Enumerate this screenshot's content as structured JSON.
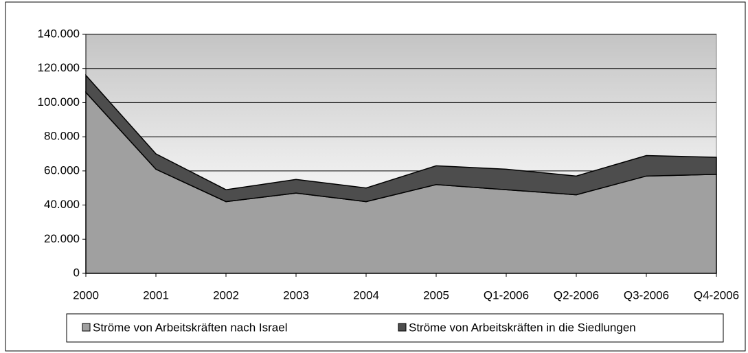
{
  "chart_data": {
    "type": "stacked_area",
    "categories": [
      "2000",
      "2001",
      "2002",
      "2003",
      "2004",
      "2005",
      "Q1-2006",
      "Q2-2006",
      "Q3-2006",
      "Q4-2006"
    ],
    "series": [
      {
        "name": "Ströme von Arbeitskräften nach Israel",
        "color": "#a0a0a0",
        "values": [
          106000,
          61000,
          42000,
          47000,
          42000,
          52000,
          49000,
          46000,
          57000,
          58000
        ]
      },
      {
        "name": "Ströme von Arbeitskräften in die Siedlungen",
        "color": "#4d4d4d",
        "values": [
          10000,
          9000,
          7000,
          8000,
          8000,
          11000,
          12000,
          11000,
          12000,
          10000
        ]
      }
    ],
    "ylim": [
      0,
      140000
    ],
    "yticks": [
      0,
      {
        "value": 20000,
        "label": "20.000"
      },
      {
        "value": 40000,
        "label": "40.000"
      },
      {
        "value": 60000,
        "label": "60.000"
      },
      {
        "value": 80000,
        "label": "80.000"
      },
      {
        "value": 100000,
        "label": "100.000"
      },
      {
        "value": 120000,
        "label": "120.000"
      },
      {
        "value": 140000,
        "label": "140.000"
      }
    ],
    "grid": true
  }
}
